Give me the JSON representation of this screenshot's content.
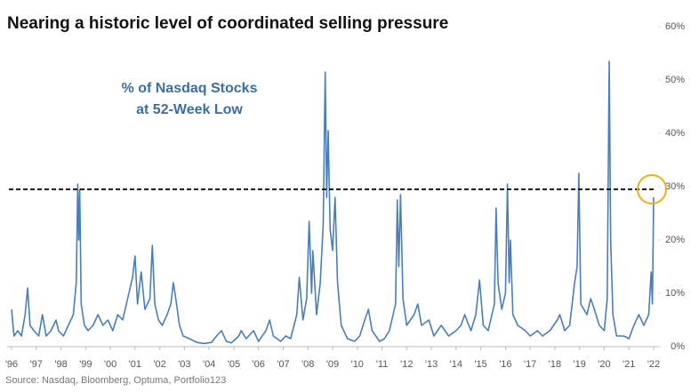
{
  "chart_data": {
    "type": "line",
    "title": "Nearing a historic level of coordinated selling pressure",
    "annotation": [
      "% of Nasdaq Stocks",
      "at 52-Week Low"
    ],
    "source": "Source: Nasdaq, Bloomberg, Optuma, Portfolio123",
    "color": "#4a7ebb",
    "threshold": 29.5,
    "highlight_color": "#e8b020",
    "x": [
      1996.0,
      1996.1,
      1996.25,
      1996.4,
      1996.55,
      1996.65,
      1996.75,
      1996.9,
      1997.1,
      1997.25,
      1997.4,
      1997.6,
      1997.8,
      1997.9,
      1998.1,
      1998.3,
      1998.5,
      1998.62,
      1998.68,
      1998.72,
      1998.76,
      1998.82,
      1998.95,
      1999.1,
      1999.3,
      1999.5,
      1999.7,
      1999.9,
      2000.1,
      2000.3,
      2000.5,
      2000.7,
      2000.9,
      2001.0,
      2001.1,
      2001.25,
      2001.4,
      2001.6,
      2001.7,
      2001.8,
      2001.95,
      2002.1,
      2002.3,
      2002.45,
      2002.55,
      2002.65,
      2002.8,
      2002.95,
      2003.2,
      2003.5,
      2003.8,
      2004.1,
      2004.3,
      2004.5,
      2004.7,
      2004.9,
      2005.2,
      2005.3,
      2005.5,
      2005.8,
      2006.0,
      2006.3,
      2006.45,
      2006.6,
      2006.9,
      2007.1,
      2007.3,
      2007.55,
      2007.65,
      2007.8,
      2007.95,
      2008.05,
      2008.15,
      2008.2,
      2008.35,
      2008.5,
      2008.62,
      2008.7,
      2008.76,
      2008.82,
      2008.9,
      2009.0,
      2009.1,
      2009.2,
      2009.35,
      2009.6,
      2009.9,
      2010.1,
      2010.3,
      2010.45,
      2010.6,
      2010.9,
      2011.1,
      2011.3,
      2011.55,
      2011.62,
      2011.68,
      2011.75,
      2011.85,
      2012.0,
      2012.3,
      2012.45,
      2012.6,
      2012.9,
      2013.1,
      2013.4,
      2013.7,
      2014.0,
      2014.2,
      2014.35,
      2014.6,
      2014.8,
      2014.95,
      2015.1,
      2015.3,
      2015.55,
      2015.62,
      2015.7,
      2015.85,
      2016.0,
      2016.08,
      2016.15,
      2016.2,
      2016.3,
      2016.5,
      2016.8,
      2017.0,
      2017.3,
      2017.5,
      2017.8,
      2018.1,
      2018.2,
      2018.4,
      2018.6,
      2018.8,
      2018.9,
      2018.97,
      2019.05,
      2019.3,
      2019.45,
      2019.6,
      2019.8,
      2020.0,
      2020.12,
      2020.2,
      2020.26,
      2020.35,
      2020.5,
      2020.8,
      2021.0,
      2021.2,
      2021.4,
      2021.6,
      2021.8,
      2021.9,
      2021.95,
      2022.0
    ],
    "values": [
      7,
      2,
      3,
      2,
      6,
      11,
      4,
      3,
      2,
      6,
      2,
      3,
      5,
      3,
      2,
      4,
      6,
      12,
      30.5,
      20,
      29.5,
      8,
      4,
      3,
      4,
      6,
      4,
      5,
      3,
      6,
      5,
      9,
      13,
      17,
      8,
      14,
      7,
      9,
      19,
      8,
      5,
      4,
      6,
      8,
      12,
      9,
      4,
      2,
      1.5,
      0.8,
      0.6,
      0.8,
      2,
      3,
      1,
      0.7,
      2,
      3,
      1.5,
      3,
      1,
      3,
      5,
      2,
      1,
      2,
      1.5,
      6,
      13,
      5,
      9,
      23.5,
      10,
      18,
      6,
      12,
      23,
      51.5,
      28,
      40.5,
      22,
      18,
      28,
      12,
      4,
      1.5,
      1,
      2,
      5,
      7,
      3,
      1,
      1.5,
      3,
      8,
      27.5,
      15,
      28.5,
      9,
      4,
      6,
      8,
      4,
      5,
      2,
      4,
      2,
      3,
      4,
      6,
      3,
      6,
      12.5,
      4,
      3,
      8,
      26,
      12,
      7,
      10,
      30.5,
      12,
      20,
      6,
      4,
      3,
      2,
      3,
      2,
      3,
      5,
      6,
      3,
      4,
      12,
      15,
      32.5,
      8,
      6,
      9,
      7,
      4,
      3,
      9,
      53.5,
      20,
      6,
      2,
      2,
      1.5,
      4,
      6,
      4,
      6,
      14,
      8,
      28
    ],
    "xlim": [
      1996,
      2022
    ],
    "xticks": [
      {
        "value": 1996,
        "label": "'96"
      },
      {
        "value": 1997,
        "label": "'97"
      },
      {
        "value": 1998,
        "label": "'98"
      },
      {
        "value": 1999,
        "label": "'99"
      },
      {
        "value": 2000,
        "label": "'00"
      },
      {
        "value": 2001,
        "label": "'01"
      },
      {
        "value": 2002,
        "label": "'02"
      },
      {
        "value": 2003,
        "label": "'03"
      },
      {
        "value": 2004,
        "label": "'04"
      },
      {
        "value": 2005,
        "label": "'05"
      },
      {
        "value": 2006,
        "label": "'06"
      },
      {
        "value": 2007,
        "label": "'07"
      },
      {
        "value": 2008,
        "label": "'08"
      },
      {
        "value": 2009,
        "label": "'09"
      },
      {
        "value": 2010,
        "label": "'10"
      },
      {
        "value": 2011,
        "label": "'11"
      },
      {
        "value": 2012,
        "label": "'12"
      },
      {
        "value": 2013,
        "label": "'13"
      },
      {
        "value": 2014,
        "label": "'14"
      },
      {
        "value": 2015,
        "label": "'15"
      },
      {
        "value": 2016,
        "label": "'16"
      },
      {
        "value": 2017,
        "label": "'17"
      },
      {
        "value": 2018,
        "label": "'18"
      },
      {
        "value": 2019,
        "label": "'19"
      },
      {
        "value": 2020,
        "label": "'20"
      },
      {
        "value": 2021,
        "label": "'21"
      },
      {
        "value": 2022,
        "label": "'22"
      }
    ],
    "ylim": [
      0,
      60
    ],
    "yticks": [
      {
        "value": 0,
        "label": "0%"
      },
      {
        "value": 10,
        "label": "10%"
      },
      {
        "value": 20,
        "label": "20%"
      },
      {
        "value": 30,
        "label": "30%"
      },
      {
        "value": 40,
        "label": "40%"
      },
      {
        "value": 50,
        "label": "50%"
      },
      {
        "value": 60,
        "label": "60%"
      }
    ]
  }
}
